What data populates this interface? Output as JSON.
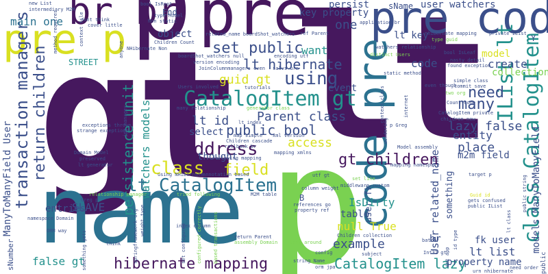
{
  "wordcloud": {
    "palette": {
      "purple": "#46185e",
      "indigo": "#3b4f8a",
      "blue": "#2c7290",
      "teal": "#23918c",
      "green": "#2fb47c",
      "lime": "#7ad151",
      "yellow": "#d9e021"
    },
    "words": [
      {
        "id": "gt-big",
        "text": "gt",
        "color": "#46185e"
      },
      {
        "id": "lt-big",
        "text": "lt",
        "color": "#46185e"
      },
      {
        "id": "p-big",
        "text": "p",
        "color": "#7ad151"
      },
      {
        "id": "p-top",
        "text": "p",
        "color": "#46185e"
      },
      {
        "id": "name",
        "text": "name",
        "color": "#2c7290"
      },
      {
        "id": "pre-top",
        "text": "pre",
        "color": "#46185e"
      },
      {
        "id": "pre-code",
        "text": "pre code",
        "color": "#3b4f8a"
      },
      {
        "id": "pre-p",
        "text": "pre p",
        "color": "#d9e021"
      },
      {
        "id": "br-br",
        "text": "br br",
        "color": "#46185e"
      },
      {
        "id": "code-pre",
        "text": "code pre",
        "color": "#2c7290"
      },
      {
        "id": "main-one",
        "text": "main one",
        "color": "#2c7290"
      },
      {
        "id": "catalogitem-gt",
        "text": "CatalogItem gt",
        "color": "#23918c"
      },
      {
        "id": "set-public",
        "text": "set public",
        "color": "#3b4f8a"
      },
      {
        "id": "lt-hibernate",
        "text": "lt hibernate",
        "color": "#3b4f8a"
      },
      {
        "id": "using",
        "text": "using",
        "color": "#3b4f8a"
      },
      {
        "id": "need",
        "text": "need",
        "color": "#3b4f8a"
      },
      {
        "id": "many",
        "text": "many",
        "color": "#3b4f8a"
      },
      {
        "id": "ilist-lt",
        "text": "IList lt",
        "color": "#23918c"
      },
      {
        "id": "class-catalogitem",
        "text": "class CatalogItem",
        "color": "#23918c"
      },
      {
        "id": "models-manytomanyfield",
        "text": "models ManyToManyField",
        "color": "#3b4f8a"
      },
      {
        "id": "parent-class",
        "text": "Parent class",
        "color": "#3b4f8a"
      },
      {
        "id": "lt-id",
        "text": "lt id",
        "color": "#3b4f8a"
      },
      {
        "id": "public-bool",
        "text": "public bool",
        "color": "#3b4f8a"
      },
      {
        "id": "lazy-false",
        "text": "lazy false",
        "color": "#3b4f8a"
      },
      {
        "id": "address",
        "text": "Address",
        "color": "#46185e"
      },
      {
        "id": "class-word",
        "text": "class",
        "color": "#d9e021"
      },
      {
        "id": "field",
        "text": "field",
        "color": "#d9e021"
      },
      {
        "id": "lt-catalogitem",
        "text": "lt CatalogItem",
        "color": "#2c7290"
      },
      {
        "id": "gt-children",
        "text": "gt children",
        "color": "#46185e"
      },
      {
        "id": "hibernate-mapping",
        "text": "hibernate mapping",
        "color": "#46185e"
      },
      {
        "id": "catalogitem-lazy",
        "text": "CatalogItem lazy",
        "color": "#23918c"
      },
      {
        "id": "example",
        "text": "example",
        "color": "#3b4f8a"
      },
      {
        "id": "false-gt",
        "text": "false gt",
        "color": "#23918c"
      },
      {
        "id": "property-name",
        "text": "property name",
        "color": "#3b4f8a"
      },
      {
        "id": "lt-list",
        "text": "lt list",
        "color": "#3b4f8a"
      },
      {
        "id": "fk-user",
        "text": "fk user",
        "color": "#3b4f8a"
      },
      {
        "id": "entity",
        "text": "entity",
        "color": "#3b4f8a"
      },
      {
        "id": "place",
        "text": "place",
        "color": "#3b4f8a"
      },
      {
        "id": "m2m-field",
        "text": "m2m field",
        "color": "#3b4f8a"
      },
      {
        "id": "transaction-managers",
        "text": "transaction managers",
        "color": "#3b4f8a"
      },
      {
        "id": "return-children",
        "text": "return children",
        "color": "#3b4f8a"
      },
      {
        "id": "persistence-unit",
        "text": "persistence unit",
        "color": "#23918c"
      },
      {
        "id": "watchers-models",
        "text": "watchers models",
        "color": "#23918c"
      },
      {
        "id": "manytomanyfield-user",
        "text": "ManyToManyField User",
        "color": "#3b4f8a"
      },
      {
        "id": "guid-gt",
        "text": "guid gt",
        "color": "#d9e021"
      },
      {
        "id": "key-property",
        "text": "key property",
        "color": "#3b4f8a"
      },
      {
        "id": "lt-key",
        "text": "lt key",
        "color": "#3b4f8a"
      },
      {
        "id": "user-watchers",
        "text": "user watchers",
        "color": "#3b4f8a"
      },
      {
        "id": "one",
        "text": "one",
        "color": "#3b4f8a"
      },
      {
        "id": "object",
        "text": "object",
        "color": "#3b4f8a"
      },
      {
        "id": "want",
        "text": "want",
        "color": "#23918c"
      },
      {
        "id": "code",
        "text": "code",
        "color": "#3b4f8a"
      },
      {
        "id": "create",
        "text": "create",
        "color": "#3b4f8a"
      },
      {
        "id": "model",
        "text": "model",
        "color": "#d9e021"
      },
      {
        "id": "collection",
        "text": "collection",
        "color": "#7ad151"
      },
      {
        "id": "access",
        "text": "access",
        "color": "#d9e021"
      },
      {
        "id": "select",
        "text": "select",
        "color": "#3b4f8a"
      },
      {
        "id": "thought",
        "text": "thought",
        "color": "#3b4f8a"
      },
      {
        "id": "slave",
        "text": "SLAVE",
        "color": "#3b4f8a"
      },
      {
        "id": "entries",
        "text": "entries",
        "color": "#3b4f8a"
      },
      {
        "id": "table",
        "text": "table",
        "color": "#3b4f8a"
      },
      {
        "id": "isdirty",
        "text": "IsDirty",
        "color": "#23918c"
      },
      {
        "id": "null-true",
        "text": "null True",
        "color": "#d9e021"
      },
      {
        "id": "street",
        "text": "STREET",
        "color": "#23918c"
      },
      {
        "id": "persist",
        "text": "persist",
        "color": "#3b4f8a"
      },
      {
        "id": "sname",
        "text": "sName",
        "color": "#3b4f8a"
      },
      {
        "id": "event",
        "text": "event",
        "color": "#3b4f8a"
      },
      {
        "id": "user-related-name",
        "text": "User related_name",
        "color": "#3b4f8a"
      },
      {
        "id": "user-fk",
        "text": "user fk",
        "color": "#3b4f8a"
      },
      {
        "id": "something",
        "text": "something",
        "color": "#3b4f8a"
      },
      {
        "id": "br-mid",
        "text": "br",
        "color": "#3b4f8a"
      },
      {
        "id": "b-letter",
        "text": "B",
        "color": "#3b4f8a"
      },
      {
        "id": "end",
        "text": "End",
        "color": "#3b4f8a"
      },
      {
        "id": "y-letter",
        "text": "Y",
        "color": "#3b4f8a"
      },
      {
        "id": "new-list",
        "text": "new List",
        "color": "#3b4f8a"
      },
      {
        "id": "intermediary-m2m",
        "text": "intermediary M2M",
        "color": "#3b4f8a"
      },
      {
        "id": "bool-isroot",
        "text": "bool IsRoot",
        "color": "#3b4f8a"
      },
      {
        "id": "dont-think",
        "text": "dont think",
        "color": "#3b4f8a"
      },
      {
        "id": "cover-little",
        "text": "cover little",
        "color": "#3b4f8a"
      },
      {
        "id": "type-model",
        "text": "type Model",
        "color": "#3b4f8a"
      },
      {
        "id": "children-count",
        "text": "Children Count",
        "color": "#3b4f8a"
      },
      {
        "id": "related-name-boardshot",
        "text": "related_name boardShot_watchers",
        "color": "#3b4f8a"
      },
      {
        "id": "ref-parent",
        "text": "ref Parent",
        "color": "#3b4f8a"
      },
      {
        "id": "nhibernate-mapping",
        "text": "nhibernate mapping",
        "color": "#3b4f8a"
      },
      {
        "id": "private-ilist",
        "text": "private IList",
        "color": "#3b4f8a"
      },
      {
        "id": "watchers-relationship",
        "text": "watchers relationship",
        "color": "#3b4f8a"
      },
      {
        "id": "boardshot-watchers-null",
        "text": "boardShot_watchers null",
        "color": "#3b4f8a"
      },
      {
        "id": "bool-isleaf",
        "text": "bool IsLeaf",
        "color": "#3b4f8a"
      },
      {
        "id": "found-exception",
        "text": "found exception",
        "color": "#3b4f8a"
      },
      {
        "id": "nasty-detail",
        "text": "nasty detail",
        "color": "#3b4f8a"
      },
      {
        "id": "encoding-utf",
        "text": "encoding utf",
        "color": "#3b4f8a"
      },
      {
        "id": "version-encoding",
        "text": "version encoding",
        "color": "#3b4f8a"
      },
      {
        "id": "joincolumnmanagers-even",
        "text": "JoinColumnmanagers even",
        "color": "#3b4f8a"
      },
      {
        "id": "users-involved",
        "text": "Users involved",
        "color": "#3b4f8a"
      },
      {
        "id": "many-relationship",
        "text": "many relationship",
        "color": "#3b4f8a"
      },
      {
        "id": "exceptions-thrown",
        "text": "exceptions thrown",
        "color": "#3b4f8a"
      },
      {
        "id": "strange-exceptions",
        "text": "strange exceptions",
        "color": "#3b4f8a"
      },
      {
        "id": "domain-model",
        "text": "Domain Model",
        "color": "#3b4f8a"
      },
      {
        "id": "preserved",
        "text": "preserved",
        "color": "#3b4f8a"
      },
      {
        "id": "lt-generator",
        "text": "lt generator",
        "color": "#3b4f8a"
      },
      {
        "id": "rollback-br",
        "text": "rollback br",
        "color": "#3b4f8a"
      },
      {
        "id": "model-assembly",
        "text": "Model assembly",
        "color": "#3b4f8a"
      },
      {
        "id": "mapping-xmlns",
        "text": "mapping xmlns",
        "color": "#3b4f8a"
      },
      {
        "id": "following-mapping",
        "text": "following mapping",
        "color": "#3b4f8a"
      },
      {
        "id": "mapping-namespace",
        "text": "mapping namespace",
        "color": "#3b4f8a"
      },
      {
        "id": "using-nhibernate",
        "text": "using NHibernate",
        "color": "#3b4f8a"
      },
      {
        "id": "annotation-based",
        "text": "annotation based",
        "color": "#3b4f8a"
      },
      {
        "id": "namespace-domain",
        "text": "namespace Domain",
        "color": "#3b4f8a"
      },
      {
        "id": "greg-p",
        "text": "Greg p",
        "color": "#3b4f8a"
      },
      {
        "id": "orm-way",
        "text": "ORM way",
        "color": "#3b4f8a"
      },
      {
        "id": "return-parent",
        "text": "return Parent",
        "color": "#3b4f8a"
      },
      {
        "id": "assembly-domain",
        "text": "assembly Domain",
        "color": "#7ad151"
      },
      {
        "id": "children-collection",
        "text": "Children collection",
        "color": "#3b4f8a"
      },
      {
        "id": "string-name",
        "text": "string Name",
        "color": "#3b4f8a"
      },
      {
        "id": "orm-jpa",
        "text": "orm jpa",
        "color": "#3b4f8a"
      },
      {
        "id": "int32-gt",
        "text": "Int32 gt",
        "color": "#3b4f8a"
      },
      {
        "id": "subject",
        "text": "subject",
        "color": "#3b4f8a"
      },
      {
        "id": "references-go",
        "text": "references go",
        "color": "#3b4f8a"
      },
      {
        "id": "property-ref",
        "text": "property ref",
        "color": "#3b4f8a"
      },
      {
        "id": "middleware-custom",
        "text": "middleware custom",
        "color": "#3b4f8a"
      },
      {
        "id": "column-weight",
        "text": "column weight",
        "color": "#3b4f8a"
      },
      {
        "id": "guid-id",
        "text": "Guid id",
        "color": "#d9e021"
      },
      {
        "id": "gets-confused",
        "text": "gets confused",
        "color": "#3b4f8a"
      },
      {
        "id": "public-ilist",
        "text": "public IList",
        "color": "#3b4f8a"
      },
      {
        "id": "need-order",
        "text": "need order",
        "color": "#3b4f8a"
      },
      {
        "id": "urn-nhibernate",
        "text": "urn nhibernate",
        "color": "#3b4f8a"
      },
      {
        "id": "catalogitem-private",
        "text": "CatalogItem private",
        "color": "#3b4f8a"
      },
      {
        "id": "children-new",
        "text": "children new",
        "color": "#3b4f8a"
      },
      {
        "id": "p-greg",
        "text": "p Greg",
        "color": "#3b4f8a"
      },
      {
        "id": "generator-class",
        "text": "generator class",
        "color": "#7ad151"
      },
      {
        "id": "count-code",
        "text": "Count code",
        "color": "#3b4f8a"
      },
      {
        "id": "two-org",
        "text": "two org",
        "color": "#7ad151"
      },
      {
        "id": "simple-class",
        "text": "simple class",
        "color": "#3b4f8a"
      },
      {
        "id": "commit-save",
        "text": "commit save",
        "color": "#3b4f8a"
      },
      {
        "id": "even-though",
        "text": "even though",
        "color": "#3b4f8a"
      },
      {
        "id": "static-method",
        "text": "static method",
        "color": "#3b4f8a"
      },
      {
        "id": "lt-index",
        "text": "lt index",
        "color": "#3b4f8a"
      },
      {
        "id": "map-simple",
        "text": "map simple",
        "color": "#3b4f8a"
      },
      {
        "id": "children-cascade",
        "text": "Children cascade",
        "color": "#3b4f8a"
      },
      {
        "id": "xml-version",
        "text": "xml version",
        "color": "#3b4f8a"
      },
      {
        "id": "tutorials",
        "text": "tutorials",
        "color": "#3b4f8a"
      },
      {
        "id": "context-file",
        "text": "context file",
        "color": "#3b4f8a"
      },
      {
        "id": "method-requires",
        "text": "method requires",
        "color": "#3b4f8a"
      },
      {
        "id": "nhibernate-non",
        "text": "NHibernate Non",
        "color": "#3b4f8a"
      },
      {
        "id": "non-static",
        "text": "Non static",
        "color": "#3b4f8a"
      },
      {
        "id": "application-br",
        "text": "application br",
        "color": "#3b4f8a"
      },
      {
        "id": "distinct-users",
        "text": "distinct Users",
        "color": "#7ad151"
      },
      {
        "id": "type-guid",
        "text": "type guid",
        "color": "#7ad151"
      },
      {
        "id": "lt-class",
        "text": "lt class",
        "color": "#3b4f8a"
      },
      {
        "id": "index-column",
        "text": "index column",
        "color": "#3b4f8a"
      },
      {
        "id": "set-configured",
        "text": "set configured",
        "color": "#3b4f8a"
      },
      {
        "id": "configured-correctly",
        "text": "configured correctly",
        "color": "#7ad151"
      },
      {
        "id": "based-transactions",
        "text": "based transactions",
        "color": "#7ad151"
      },
      {
        "id": "tried-following",
        "text": "tried following",
        "color": "#7ad151"
      },
      {
        "id": "m2m-table",
        "text": "M2M table",
        "color": "#3b4f8a"
      },
      {
        "id": "weight-type",
        "text": "weight type",
        "color": "#3b4f8a"
      },
      {
        "id": "relationship-manager",
        "text": "relationship manager",
        "color": "#7ad151"
      },
      {
        "id": "springframework-org",
        "text": "springframework org",
        "color": "#3b4f8a"
      },
      {
        "id": "think",
        "text": "think",
        "color": "#3b4f8a"
      },
      {
        "id": "something-gets",
        "text": "something gets",
        "color": "#3b4f8a"
      },
      {
        "id": "config",
        "text": "config",
        "color": "#3b4f8a"
      },
      {
        "id": "less-around",
        "text": "less around",
        "color": "#7ad151"
      },
      {
        "id": "batch",
        "text": "batch",
        "color": "#3b4f8a"
      },
      {
        "id": "target-p",
        "text": "target p",
        "color": "#3b4f8a"
      },
      {
        "id": "public-string",
        "text": "public string",
        "color": "#3b4f8a"
      },
      {
        "id": "int-app",
        "text": "int app",
        "color": "#3b4f8a"
      },
      {
        "id": "snumber",
        "text": "sNumber",
        "color": "#3b4f8a"
      },
      {
        "id": "jpa-manager",
        "text": "jpa manager",
        "color": "#3b4f8a"
      },
      {
        "id": "utf-gt",
        "text": "utf gt",
        "color": "#3b4f8a"
      },
      {
        "id": "set-line",
        "text": "set line",
        "color": "#7ad151"
      },
      {
        "id": "anyone",
        "text": "anyone",
        "color": "#3b4f8a"
      },
      {
        "id": "context-class",
        "text": "context class",
        "color": "#3b4f8a"
      },
      {
        "id": "wondering",
        "text": "wondering",
        "color": "#3b4f8a"
      },
      {
        "id": "internet",
        "text": "internet",
        "color": "#3b4f8a"
      },
      {
        "id": "salvs-urn",
        "text": "salvs urn",
        "color": "#3b4f8a"
      },
      {
        "id": "public",
        "text": "public",
        "color": "#3b4f8a"
      },
      {
        "id": "id-type",
        "text": "id type",
        "color": "#3b4f8a"
      }
    ]
  }
}
